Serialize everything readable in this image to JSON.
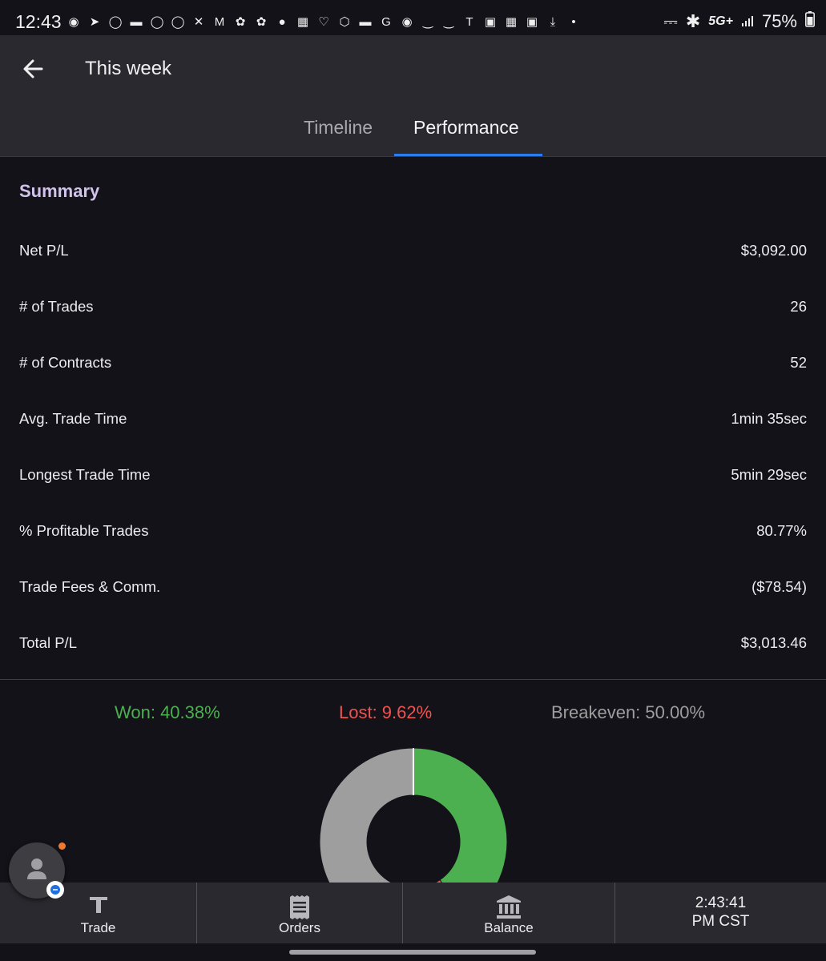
{
  "status_bar": {
    "time": "12:43",
    "network": "5G+",
    "battery": "75%",
    "notification_icons": [
      "chat-icon",
      "bird-icon",
      "amex-icon",
      "card-icon",
      "adt-icon",
      "amex-icon",
      "x-icon",
      "gmail-icon",
      "pinwheel-icon",
      "pinwheel-icon",
      "clock-icon",
      "apps-icon",
      "heart-icon",
      "hex-icon",
      "card-icon",
      "google-icon",
      "chat-icon",
      "amazon-icon",
      "amazon-icon",
      "tesla-icon",
      "screenshot-icon",
      "gallery-icon",
      "bag-icon",
      "download-icon",
      "dot-icon"
    ]
  },
  "header": {
    "title": "This week",
    "tabs": [
      {
        "label": "Timeline",
        "selected": false
      },
      {
        "label": "Performance",
        "selected": true
      }
    ]
  },
  "summary": {
    "title": "Summary",
    "rows": [
      {
        "label": "Net P/L",
        "value": "$3,092.00"
      },
      {
        "label": "# of Trades",
        "value": "26"
      },
      {
        "label": "# of Contracts",
        "value": "52"
      },
      {
        "label": "Avg. Trade Time",
        "value": "1min 35sec"
      },
      {
        "label": "Longest Trade Time",
        "value": "5min 29sec"
      },
      {
        "label": "% Profitable Trades",
        "value": "80.77%"
      },
      {
        "label": "Trade Fees & Comm.",
        "value": "($78.54)"
      },
      {
        "label": "Total P/L",
        "value": "$3,013.46"
      }
    ]
  },
  "stats": {
    "won_text": "Won: 40.38%",
    "lost_text": "Lost: 9.62%",
    "breakeven_text": "Breakeven: 50.00%"
  },
  "chart_data": {
    "type": "pie",
    "categories": [
      "Won",
      "Lost",
      "Breakeven"
    ],
    "values": [
      40.38,
      9.62,
      50.0
    ],
    "colors": [
      "#4caf50",
      "#ef5350",
      "#9e9e9e"
    ]
  },
  "colors": {
    "won": "#4caf50",
    "lost": "#ef5350",
    "breakeven": "#9e9e9e",
    "accent": "#2b7cf0",
    "summary_title": "#d2c3ec"
  },
  "bottom_nav": {
    "items": [
      {
        "label": "Trade",
        "icon": "trade-icon"
      },
      {
        "label": "Orders",
        "icon": "receipt-icon"
      },
      {
        "label": "Balance",
        "icon": "bank-icon"
      }
    ],
    "clock_time": "2:43:41",
    "clock_zone": "PM CST"
  }
}
